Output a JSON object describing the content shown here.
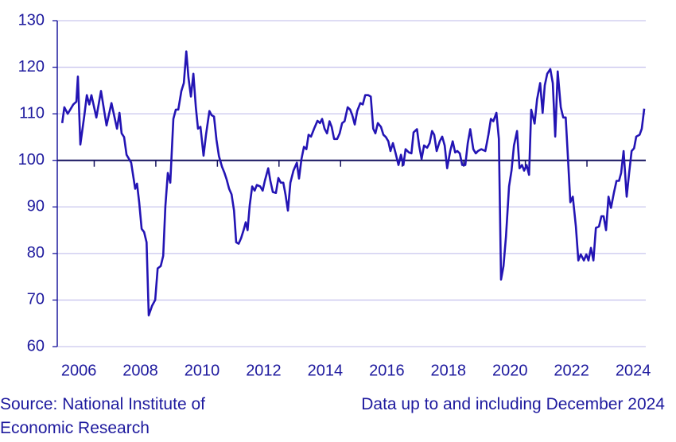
{
  "chart_data": {
    "type": "line",
    "x": [
      2005.96,
      2006.03,
      2006.14,
      2006.32,
      2006.42,
      2006.47,
      2006.55,
      2006.68,
      2006.76,
      2006.84,
      2006.91,
      2007.07,
      2007.22,
      2007.4,
      2007.56,
      2007.74,
      2007.82,
      2007.89,
      2007.97,
      2008.05,
      2008.2,
      2008.33,
      2008.39,
      2008.46,
      2008.54,
      2008.62,
      2008.7,
      2008.77,
      2008.88,
      2008.98,
      2009.06,
      2009.16,
      2009.24,
      2009.31,
      2009.39,
      2009.47,
      2009.57,
      2009.65,
      2009.73,
      2009.83,
      2009.91,
      2009.99,
      2010.06,
      2010.14,
      2010.22,
      2010.3,
      2010.37,
      2010.45,
      2010.55,
      2010.63,
      2010.74,
      2010.81,
      2010.89,
      2010.97,
      2011.05,
      2011.15,
      2011.23,
      2011.3,
      2011.38,
      2011.46,
      2011.54,
      2011.61,
      2011.69,
      2011.77,
      2011.85,
      2011.92,
      2011.98,
      2012.05,
      2012.13,
      2012.21,
      2012.28,
      2012.39,
      2012.47,
      2012.54,
      2012.65,
      2012.72,
      2012.8,
      2012.9,
      2012.98,
      2013.06,
      2013.14,
      2013.21,
      2013.29,
      2013.37,
      2013.47,
      2013.58,
      2013.65,
      2013.73,
      2013.81,
      2013.89,
      2013.96,
      2014.04,
      2014.14,
      2014.25,
      2014.33,
      2014.4,
      2014.48,
      2014.56,
      2014.64,
      2014.71,
      2014.79,
      2014.89,
      2014.97,
      2015.05,
      2015.13,
      2015.23,
      2015.31,
      2015.38,
      2015.46,
      2015.54,
      2015.64,
      2015.72,
      2015.8,
      2015.9,
      2015.98,
      2016.06,
      2016.13,
      2016.21,
      2016.31,
      2016.39,
      2016.47,
      2016.55,
      2016.62,
      2016.7,
      2016.78,
      2016.88,
      2016.96,
      2017.04,
      2017.11,
      2017.22,
      2017.3,
      2017.37,
      2017.48,
      2017.55,
      2017.63,
      2017.71,
      2017.81,
      2017.89,
      2017.97,
      2018.04,
      2018.12,
      2018.22,
      2018.3,
      2018.38,
      2018.46,
      2018.56,
      2018.64,
      2018.72,
      2018.79,
      2018.87,
      2018.95,
      2019.05,
      2019.13,
      2019.21,
      2019.31,
      2019.39,
      2019.46,
      2019.57,
      2019.7,
      2019.8,
      2019.88,
      2019.96,
      2020.06,
      2020.14,
      2020.21,
      2020.29,
      2020.37,
      2020.47,
      2020.55,
      2020.63,
      2020.73,
      2020.81,
      2020.89,
      2020.96,
      2021.04,
      2021.12,
      2021.19,
      2021.3,
      2021.38,
      2021.48,
      2021.56,
      2021.63,
      2021.71,
      2021.81,
      2021.89,
      2021.97,
      2022.05,
      2022.15,
      2022.23,
      2022.31,
      2022.38,
      2022.46,
      2022.54,
      2022.64,
      2022.72,
      2022.8,
      2022.9,
      2022.98,
      2023.05,
      2023.13,
      2023.21,
      2023.29,
      2023.39,
      2023.47,
      2023.54,
      2023.62,
      2023.7,
      2023.78,
      2023.88,
      2023.96,
      2024.04,
      2024.11,
      2024.19,
      2024.29,
      2024.37,
      2024.45,
      2024.53,
      2024.6,
      2024.71,
      2024.78,
      2024.86
    ],
    "values": [
      108,
      111.4,
      110,
      112,
      112.6,
      118,
      103.4,
      109.7,
      114,
      112,
      114,
      109.2,
      114.9,
      107.5,
      112.3,
      106.8,
      110.2,
      105.8,
      105,
      101.2,
      99.5,
      93.9,
      95,
      91,
      85.3,
      84.6,
      82.4,
      66.7,
      68.8,
      70,
      76.8,
      77.3,
      79.5,
      90.1,
      97.3,
      95.2,
      108.9,
      110.9,
      110.9,
      114.9,
      116.6,
      123.4,
      117.8,
      113.7,
      118.6,
      111.4,
      106.8,
      107.2,
      101,
      105.5,
      110.6,
      109.7,
      109.4,
      104.4,
      100.9,
      98.6,
      97.3,
      95.9,
      93.9,
      92.7,
      89.2,
      82.4,
      82.1,
      83.3,
      85,
      86.7,
      85,
      90.4,
      94.4,
      93.5,
      94.7,
      94.4,
      93.5,
      95.6,
      98.3,
      95.6,
      93.2,
      93,
      96.2,
      95.2,
      95.2,
      92.7,
      89.2,
      95.2,
      97.8,
      99.5,
      96.1,
      100.3,
      102.9,
      102.4,
      105.5,
      105.1,
      106.8,
      108.5,
      108,
      108.9,
      106.8,
      105.8,
      108.4,
      107.2,
      104.6,
      104.6,
      105.8,
      108,
      108.4,
      111.4,
      110.9,
      109.7,
      107.7,
      110.6,
      112.3,
      112,
      114,
      114,
      113.7,
      106.8,
      105.8,
      108,
      107.2,
      105.5,
      105,
      104.1,
      102,
      103.7,
      101.7,
      99,
      101.2,
      99,
      102.4,
      101.7,
      101.5,
      106,
      106.7,
      103.2,
      100.3,
      103.2,
      102.7,
      103.7,
      106.3,
      105.5,
      102,
      104.1,
      105.1,
      103.2,
      98.3,
      102,
      104.1,
      101.7,
      102,
      101.5,
      99,
      99,
      103.7,
      106.7,
      102.4,
      101.5,
      102,
      102.4,
      102,
      105.5,
      108.9,
      108.4,
      110.2,
      104.6,
      74.4,
      77.3,
      83.6,
      94.4,
      97.8,
      103.2,
      106.3,
      98.3,
      99,
      97.8,
      99,
      96.9,
      110.9,
      107.9,
      113.1,
      116.6,
      110.2,
      116.1,
      118.6,
      119.6,
      116.6,
      105.1,
      119.1,
      111.4,
      109.2,
      109.2,
      100.9,
      91,
      92.2,
      85.8,
      78.5,
      79.8,
      78.5,
      79.8,
      78.5,
      81.2,
      78.5,
      85.5,
      85.8,
      88,
      88,
      85,
      92.2,
      89.8,
      93.2,
      95.6,
      95.6,
      97.3,
      102,
      92.2,
      97.3,
      102,
      102.6,
      105.1,
      105.5,
      106.8,
      111.1
    ],
    "color": "#2314b4",
    "xlim": [
      2005.8,
      2024.91
    ],
    "xticks": [
      2006,
      2008,
      2010,
      2012,
      2014,
      2016,
      2018,
      2020,
      2022,
      2024
    ],
    "ylim": [
      60,
      130
    ],
    "yticks": [
      60,
      70,
      80,
      90,
      100,
      110,
      120,
      130
    ],
    "grid": true,
    "reference_line": 100,
    "source": "Source: National Institute of Economic Research",
    "note": "Data up to and including December 2024"
  }
}
